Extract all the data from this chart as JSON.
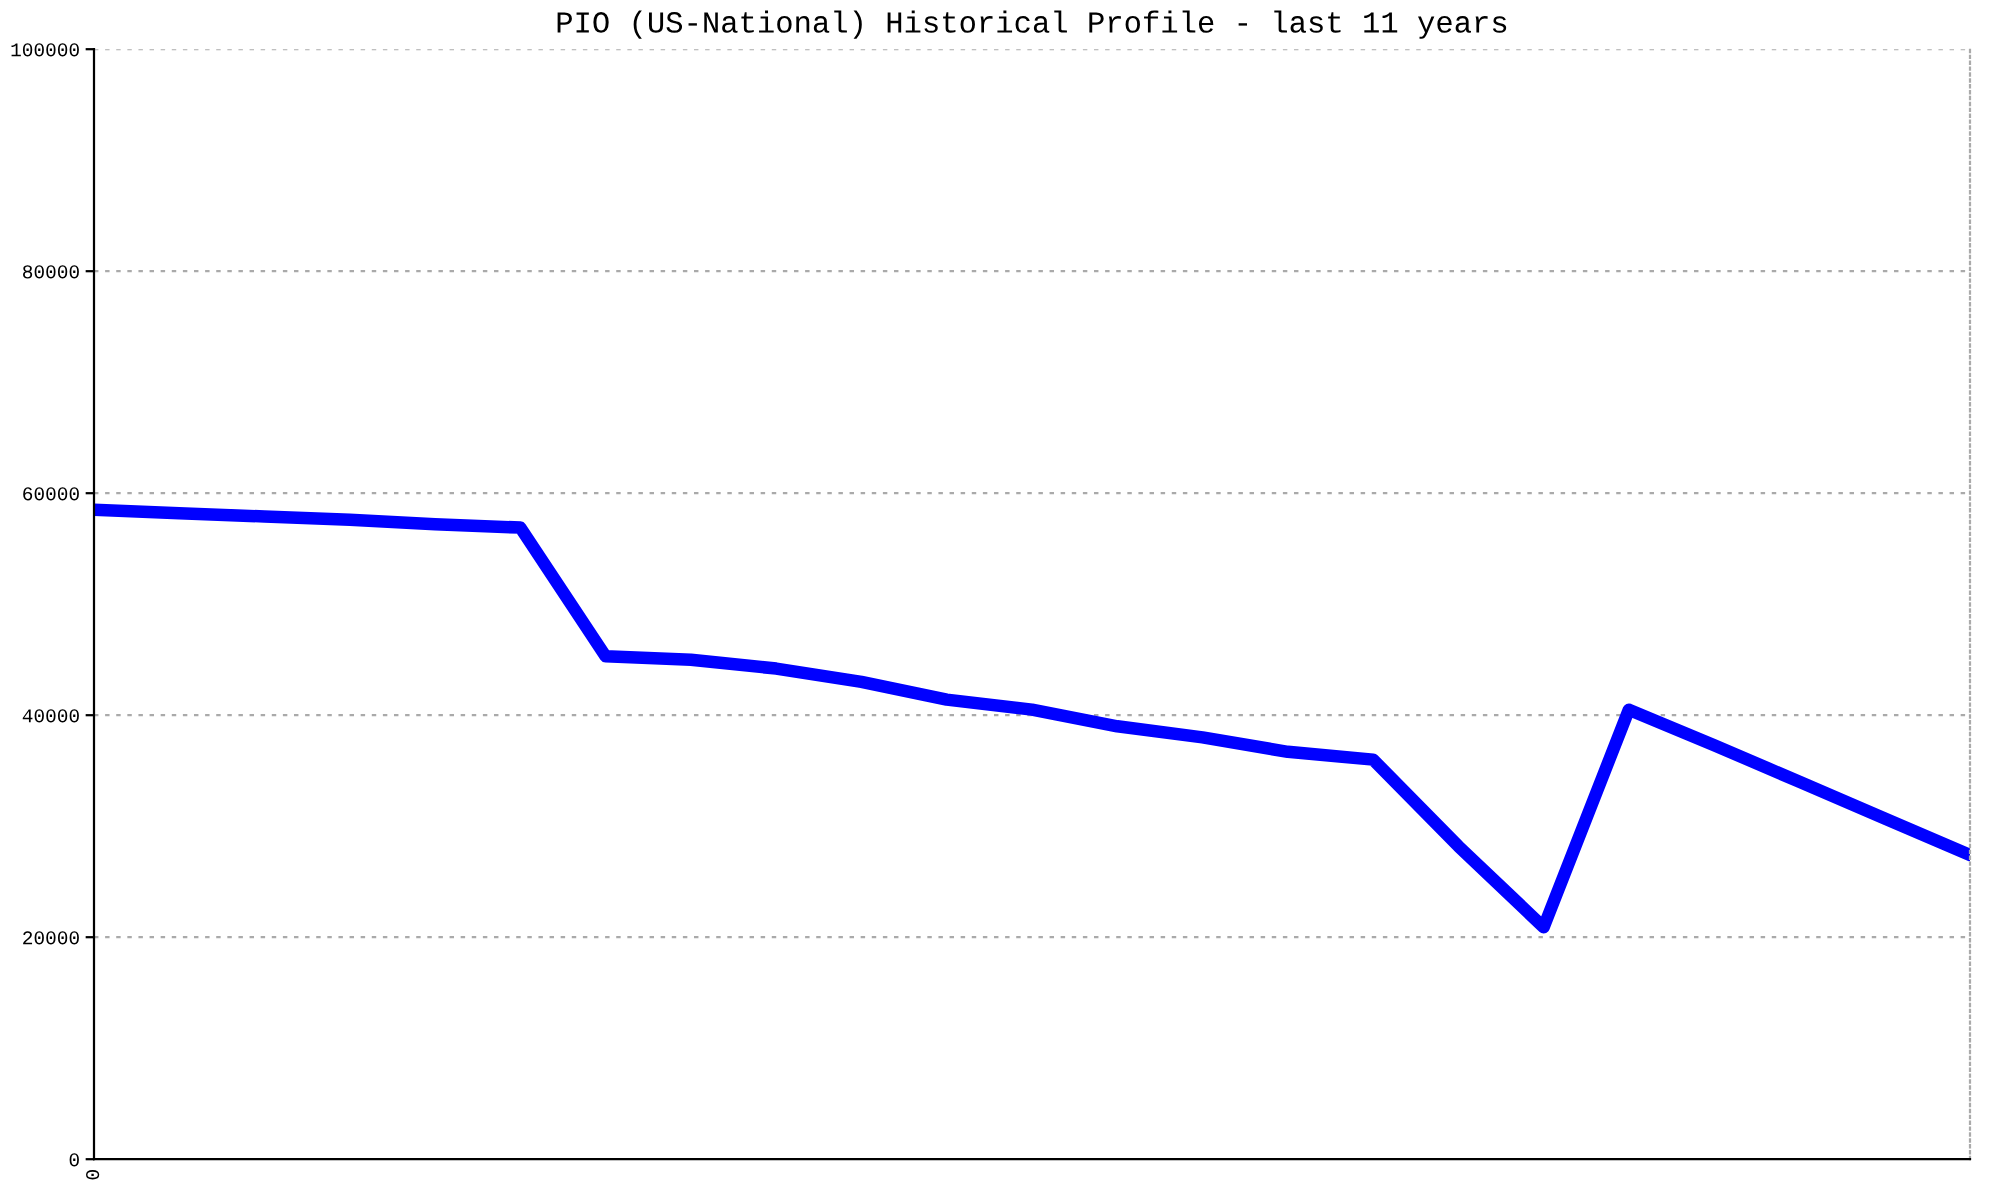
{
  "chart_data": {
    "type": "line",
    "title": "PIO (US-National) Historical Profile - last 11 years",
    "categories": [
      "0",
      null,
      null,
      null,
      null,
      null,
      null,
      null,
      null,
      null,
      null,
      null,
      null,
      null,
      null,
      null,
      null,
      null,
      null,
      null,
      null,
      null,
      null
    ],
    "series": [
      {
        "color": "#0000ff",
        "values": [
          58500,
          58200,
          57900,
          57600,
          57200,
          56900,
          45300,
          45000,
          44200,
          43000,
          41400,
          40500,
          39000,
          38000,
          36700,
          36000,
          28200,
          20900,
          40500,
          37300,
          34000,
          30700,
          27400
        ]
      }
    ],
    "ylim": [
      0,
      100000
    ],
    "yticks": [
      0,
      20000,
      40000,
      60000,
      80000,
      100000
    ],
    "grid": "y",
    "marker": "none",
    "line_style": "solid"
  }
}
